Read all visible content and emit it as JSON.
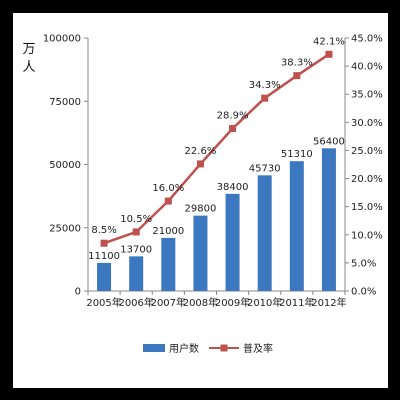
{
  "chart_data": {
    "type": "bar",
    "categories": [
      "2005年",
      "2006年",
      "2007年",
      "2008年",
      "2009年",
      "2010年",
      "2011年",
      "2012年"
    ],
    "series": [
      {
        "name": "用户数",
        "type": "bar",
        "axis": "left",
        "color": "#3b78c0",
        "values": [
          11100,
          13700,
          21000,
          29800,
          38400,
          45730,
          51310,
          56400
        ],
        "labels": [
          "11100",
          "13700",
          "21000",
          "29800",
          "38400",
          "45730",
          "51310",
          "56400"
        ]
      },
      {
        "name": "普及率",
        "type": "line",
        "axis": "right",
        "color": "#c0504d",
        "values": [
          8.5,
          10.5,
          16.0,
          22.6,
          28.9,
          34.3,
          38.3,
          42.1
        ],
        "labels": [
          "8.5%",
          "10.5%",
          "16.0%",
          "22.6%",
          "28.9%",
          "34.3%",
          "38.3%",
          "42.1%"
        ]
      }
    ],
    "y_left": {
      "label": "万人",
      "ylim": [
        0,
        100000
      ],
      "ticks": [
        0,
        25000,
        50000,
        75000,
        100000
      ],
      "tick_labels": [
        "0",
        "25000",
        "50000",
        "75000",
        "100000"
      ]
    },
    "y_right": {
      "ylim": [
        0,
        45
      ],
      "ticks": [
        0,
        5,
        10,
        15,
        20,
        25,
        30,
        35,
        40,
        45
      ],
      "tick_labels": [
        "0.0%",
        "5.0%",
        "10.0%",
        "15.0%",
        "20.0%",
        "25.0%",
        "30.0%",
        "35.0%",
        "40.0%",
        "45.0%"
      ]
    },
    "grid": false,
    "legend_position": "bottom"
  }
}
